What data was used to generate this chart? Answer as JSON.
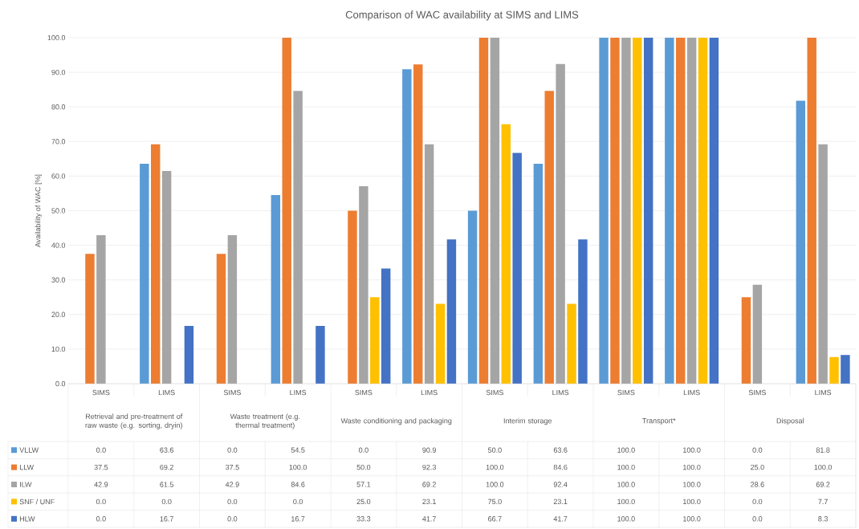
{
  "chart_data": {
    "type": "bar",
    "title": "Comparison of WAC availability at SIMS and LIMS",
    "ylabel": "Availability of WAC [%]",
    "categories": [
      "SIMS",
      "LIMS",
      "SIMS",
      "LIMS",
      "SIMS",
      "LIMS",
      "SIMS",
      "LIMS",
      "SIMS",
      "LIMS",
      "SIMS",
      "LIMS"
    ],
    "annotations": [
      "Retrieval and pre-treatment of raw waste (e.g. sorting, dryin)",
      "Waste treatment (e.g. thermal treatment)",
      "Waste conditioning and packaging",
      "Interim storage",
      "Transport*",
      "Disposal"
    ],
    "series": [
      {
        "name": "VLLW",
        "color": "#5b9bd5",
        "values": [
          0.0,
          63.6,
          0.0,
          54.5,
          0.0,
          90.9,
          50.0,
          63.6,
          100.0,
          100.0,
          0.0,
          81.8
        ],
        "value_labels": [
          "0.0",
          "63.6",
          "0.0",
          "54.5",
          "0.0",
          "90.9",
          "50.0",
          "63.6",
          "100.0",
          "100.0",
          "0.0",
          "81.8"
        ]
      },
      {
        "name": "LLW",
        "color": "#ed7d31",
        "values": [
          37.5,
          69.2,
          37.5,
          100.0,
          50.0,
          92.3,
          100.0,
          84.6,
          100.0,
          100.0,
          25.0,
          100.0
        ],
        "value_labels": [
          "37.5",
          "69.2",
          "37.5",
          "100.0",
          "50.0",
          "92.3",
          "100.0",
          "84.6",
          "100.0",
          "100.0",
          "25.0",
          "100.0"
        ]
      },
      {
        "name": "ILW",
        "color": "#a5a5a5",
        "values": [
          42.9,
          61.5,
          42.9,
          84.6,
          57.1,
          69.2,
          100.0,
          92.4,
          100.0,
          100.0,
          28.6,
          69.2
        ],
        "value_labels": [
          "42.9",
          "61.5",
          "42.9",
          "84.6",
          "57.1",
          "69.2",
          "100.0",
          "92.4",
          "100.0",
          "100.0",
          "28.6",
          "69.2"
        ]
      },
      {
        "name": "SNF / UNF",
        "color": "#ffc000",
        "values": [
          0.0,
          0.0,
          0.0,
          0.0,
          25.0,
          23.1,
          75.0,
          23.1,
          100.0,
          100.0,
          0.0,
          7.7
        ],
        "value_labels": [
          "0.0",
          "0.0",
          "0.0",
          "0.0",
          "25.0",
          "23.1",
          "75.0",
          "23.1",
          "100.0",
          "100.0",
          "0.0",
          "7.7"
        ]
      },
      {
        "name": "HLW",
        "color": "#4472c4",
        "values": [
          0.0,
          16.7,
          0.0,
          16.7,
          33.3,
          41.7,
          66.7,
          41.7,
          100.0,
          100.0,
          0.0,
          8.3
        ],
        "value_labels": [
          "0.0",
          "16.7",
          "0.0",
          "16.7",
          "33.3",
          "41.7",
          "66.7",
          "41.7",
          "100.0",
          "100.0",
          "0.0",
          "8.3"
        ]
      }
    ],
    "ylim": [
      0,
      100
    ],
    "yticks": [
      {
        "value": 0,
        "label": "0.0"
      },
      {
        "value": 10,
        "label": "10.0"
      },
      {
        "value": 20,
        "label": "20.0"
      },
      {
        "value": 30,
        "label": "30.0"
      },
      {
        "value": 40,
        "label": "40.0"
      },
      {
        "value": 50,
        "label": "50.0"
      },
      {
        "value": 60,
        "label": "60.0"
      },
      {
        "value": 70,
        "label": "70.0"
      },
      {
        "value": 80,
        "label": "80.0"
      },
      {
        "value": 90,
        "label": "90.0"
      },
      {
        "value": 100,
        "label": "100.0"
      }
    ],
    "grid": "y",
    "legend": "bottom"
  }
}
